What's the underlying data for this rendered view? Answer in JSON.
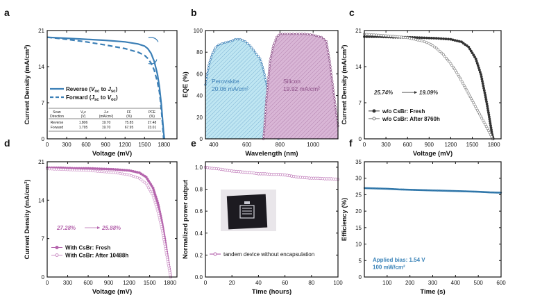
{
  "colors": {
    "blue": "#3b7fb6",
    "blue_fill": "#bfe6f2",
    "purple": "#8c4f87",
    "purple_fill": "#d9b6d6",
    "magenta": "#b565ad",
    "dark": "#222222",
    "grey": "#888888",
    "steel": "#3a83b8"
  },
  "chart_data": [
    {
      "panel": "a",
      "type": "line",
      "title": "",
      "xlabel": "Voltage (mV)",
      "ylabel": "Current Density (mA/cm²)",
      "xlim": [
        0,
        2000
      ],
      "ylim": [
        0,
        21
      ],
      "xticks": [
        "0",
        "300",
        "600",
        "900",
        "1200",
        "1500",
        "1800"
      ],
      "xtick_values": [
        0,
        300,
        600,
        900,
        1200,
        1500,
        1800
      ],
      "yticks": [
        "0",
        "7",
        "14",
        "21"
      ],
      "ytick_values": [
        0,
        7,
        14,
        21
      ],
      "series": [
        {
          "name": "Reverse (Voc to Jsc)",
          "style": "solid",
          "x": [
            0,
            300,
            600,
            900,
            1200,
            1400,
            1500,
            1550,
            1600,
            1650,
            1700,
            1730,
            1760,
            1780,
            1795,
            1806
          ],
          "y": [
            19.7,
            19.5,
            19.3,
            19.1,
            18.8,
            18.4,
            18.0,
            17.5,
            16.6,
            15.0,
            12.5,
            10.0,
            6.5,
            3.5,
            1.2,
            0
          ]
        },
        {
          "name": "Forward (Jsc to Voc)",
          "style": "dashed",
          "x": [
            0,
            300,
            600,
            900,
            1200,
            1400,
            1500,
            1550,
            1600,
            1650,
            1700,
            1730,
            1760,
            1780,
            1795
          ],
          "y": [
            19.7,
            19.3,
            18.8,
            18.2,
            17.5,
            16.8,
            16.2,
            15.6,
            14.7,
            13.3,
            11.0,
            9.0,
            5.5,
            2.5,
            0
          ]
        }
      ],
      "legend": [
        {
          "prefix": "Reverse (",
          "v1": "V",
          "s1": "oc",
          "mid": " to ",
          "v2": "J",
          "s2": "sc",
          "suffix": ")"
        },
        {
          "prefix": "Forward (",
          "v1": "J",
          "s1": "sc",
          "mid": " to ",
          "v2": "V",
          "s2": "oc",
          "suffix": ")"
        }
      ],
      "table": {
        "headers": [
          [
            "Scan",
            "Direction"
          ],
          [
            "Vₒc",
            "(V)"
          ],
          [
            "Jₛc",
            "(mA/cm²)"
          ],
          [
            "FF",
            "(%)"
          ],
          [
            "PCE",
            "(%)"
          ]
        ],
        "rows": [
          [
            "Reverse",
            "1.806",
            "19.70",
            "75.85",
            "27.48"
          ],
          [
            "Forward",
            "1.795",
            "19.70",
            "67.95",
            "23.01"
          ]
        ]
      }
    },
    {
      "panel": "b",
      "type": "area",
      "title": "",
      "xlabel": "Wavelength (nm)",
      "ylabel": "EQE (%)",
      "xlim": [
        350,
        1150
      ],
      "ylim": [
        0,
        100
      ],
      "xticks": [
        "400",
        "600",
        "800",
        "1000"
      ],
      "xtick_values": [
        400,
        600,
        800,
        1000
      ],
      "yticks": [
        "0",
        "20",
        "40",
        "60",
        "80",
        "100"
      ],
      "ytick_values": [
        0,
        20,
        40,
        60,
        80,
        100
      ],
      "series": [
        {
          "name": "Perovskite",
          "x": [
            350,
            370,
            390,
            410,
            430,
            450,
            470,
            500,
            530,
            560,
            590,
            620,
            650,
            680,
            700,
            720,
            740,
            760,
            770,
            780,
            790
          ],
          "y": [
            50,
            68,
            78,
            84,
            87,
            88,
            89,
            90,
            92,
            92,
            90,
            86,
            80,
            74,
            64,
            50,
            36,
            22,
            12,
            4,
            0
          ]
        },
        {
          "name": "Silicon",
          "x": [
            700,
            720,
            740,
            760,
            780,
            800,
            830,
            860,
            900,
            950,
            1000,
            1050,
            1080,
            1100,
            1120,
            1140,
            1150
          ],
          "y": [
            0,
            40,
            72,
            86,
            94,
            97,
            97,
            97,
            97,
            97,
            96,
            94,
            90,
            72,
            48,
            24,
            12
          ]
        }
      ],
      "annotations": [
        {
          "name": "Perovskite",
          "line1": "Perovskite",
          "line2": "20.06 mA/cm²"
        },
        {
          "name": "Silicon",
          "line1": "Silicon",
          "line2": "19.92 mA/cm²"
        }
      ]
    },
    {
      "panel": "c",
      "type": "line",
      "title": "",
      "xlabel": "Voltage (mV)",
      "ylabel": "Current Density (mA/cm²)",
      "xlim": [
        0,
        1900
      ],
      "ylim": [
        0,
        21
      ],
      "xticks": [
        "0",
        "300",
        "600",
        "900",
        "1200",
        "1500",
        "1800"
      ],
      "xtick_values": [
        0,
        300,
        600,
        900,
        1200,
        1500,
        1800
      ],
      "yticks": [
        "0",
        "7",
        "14",
        "21"
      ],
      "ytick_values": [
        0,
        7,
        14,
        21
      ],
      "series": [
        {
          "name": "w/o CsBr: Fresh",
          "x": [
            0,
            200,
            400,
            600,
            800,
            1000,
            1200,
            1350,
            1450,
            1550,
            1620,
            1680,
            1720,
            1750,
            1770,
            1790
          ],
          "y": [
            19.8,
            19.8,
            19.7,
            19.7,
            19.6,
            19.5,
            19.3,
            18.8,
            17.8,
            15.5,
            12.5,
            8.5,
            5.5,
            3.0,
            1.3,
            0
          ]
        },
        {
          "name": "w/o CsBr: After 8760h",
          "x": [
            0,
            200,
            400,
            600,
            800,
            900,
            1000,
            1100,
            1200,
            1300,
            1400,
            1500,
            1600,
            1680,
            1740,
            1780
          ],
          "y": [
            20.3,
            20.1,
            19.9,
            19.6,
            19.0,
            18.5,
            17.6,
            16.3,
            14.6,
            12.5,
            10.0,
            7.4,
            4.8,
            2.8,
            1.2,
            0
          ]
        }
      ],
      "annotation": {
        "from": "25.74%",
        "arrow": "→",
        "to": "19.09%"
      }
    },
    {
      "panel": "d",
      "type": "line",
      "title": "",
      "xlabel": "Voltage (mV)",
      "ylabel": "Current Density (mA/cm²)",
      "xlim": [
        0,
        1900
      ],
      "ylim": [
        0,
        21
      ],
      "xticks": [
        "0",
        "300",
        "600",
        "900",
        "1200",
        "1500",
        "1800"
      ],
      "xtick_values": [
        0,
        300,
        600,
        900,
        1200,
        1500,
        1800
      ],
      "yticks": [
        "0",
        "7",
        "14",
        "21"
      ],
      "ytick_values": [
        0,
        7,
        14,
        21
      ],
      "series": [
        {
          "name": "With CsBr: Fresh",
          "x": [
            0,
            200,
            400,
            600,
            800,
            1000,
            1200,
            1350,
            1450,
            1550,
            1620,
            1680,
            1720,
            1760,
            1790,
            1810
          ],
          "y": [
            19.9,
            19.9,
            19.8,
            19.8,
            19.7,
            19.6,
            19.4,
            19.0,
            18.2,
            16.2,
            13.5,
            10.0,
            7.0,
            3.8,
            1.5,
            0
          ]
        },
        {
          "name": "With CsBr: After 10488h",
          "x": [
            0,
            200,
            400,
            600,
            800,
            1000,
            1200,
            1350,
            1450,
            1550,
            1620,
            1680,
            1720,
            1760,
            1790,
            1805
          ],
          "y": [
            19.7,
            19.6,
            19.5,
            19.4,
            19.2,
            19.0,
            18.6,
            18.0,
            17.0,
            14.8,
            12.0,
            8.8,
            6.0,
            3.2,
            1.2,
            0
          ]
        }
      ],
      "annotation": {
        "from": "27.28%",
        "arrow": "→",
        "to": "25.88%"
      }
    },
    {
      "panel": "e",
      "type": "line",
      "title": "",
      "xlabel": "Time (hours)",
      "ylabel": "Normalized power output",
      "xlim": [
        0,
        100
      ],
      "ylim": [
        0,
        1.05
      ],
      "xticks": [
        "0",
        "20",
        "40",
        "60",
        "80",
        "100"
      ],
      "xtick_values": [
        0,
        20,
        40,
        60,
        80,
        100
      ],
      "yticks": [
        "0.0",
        "0.2",
        "0.4",
        "0.6",
        "0.8",
        "1.0"
      ],
      "ytick_values": [
        0,
        0.2,
        0.4,
        0.6,
        0.8,
        1.0
      ],
      "series": [
        {
          "name": "tandem device without encapsulation",
          "x": [
            0,
            5,
            10,
            15,
            20,
            25,
            30,
            35,
            40,
            45,
            50,
            55,
            60,
            65,
            70,
            75,
            80,
            85,
            90,
            95,
            100
          ],
          "y": [
            1.0,
            0.99,
            0.985,
            0.975,
            0.965,
            0.96,
            0.955,
            0.95,
            0.94,
            0.94,
            0.935,
            0.935,
            0.93,
            0.92,
            0.91,
            0.905,
            0.9,
            0.9,
            0.895,
            0.895,
            0.89
          ]
        }
      ]
    },
    {
      "panel": "f",
      "type": "line",
      "title": "",
      "xlabel": "Time (s)",
      "ylabel": "Efficiency (%)",
      "xlim": [
        0,
        600
      ],
      "ylim": [
        0,
        35
      ],
      "xticks": [
        "100",
        "200",
        "300",
        "400",
        "500",
        "600"
      ],
      "xtick_values": [
        100,
        200,
        300,
        400,
        500,
        600
      ],
      "yticks": [
        "0",
        "5",
        "10",
        "15",
        "20",
        "25",
        "30",
        "35"
      ],
      "ytick_values": [
        0,
        5,
        10,
        15,
        20,
        25,
        30,
        35
      ],
      "series": [
        {
          "name": "Efficiency",
          "x": [
            0,
            50,
            100,
            150,
            200,
            250,
            300,
            350,
            400,
            450,
            500,
            550,
            600
          ],
          "y": [
            27.0,
            26.9,
            26.8,
            26.6,
            26.5,
            26.4,
            26.3,
            26.2,
            26.1,
            26.0,
            25.9,
            25.7,
            25.6
          ]
        }
      ],
      "annotation": {
        "line1": "Applied bias: 1.54 V",
        "line2": "100 mW/cm²"
      }
    }
  ]
}
